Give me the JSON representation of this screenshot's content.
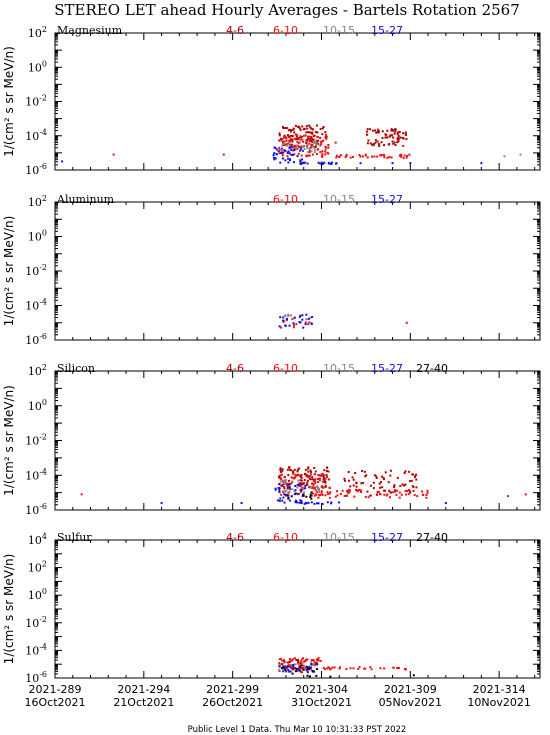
{
  "title": "STEREO LET ahead Hourly Averages - Bartels Rotation 2567",
  "ylabel": "1/(cm² s sr MeV/n)",
  "footer": "Public Level 1 Data. Thu Mar 10 10:31:33 PST 2022",
  "x_ticks": [
    {
      "line1": "2021-289",
      "line2": "16Oct2021"
    },
    {
      "line1": "2021-294",
      "line2": "21Oct2021"
    },
    {
      "line1": "2021-299",
      "line2": "26Oct2021"
    },
    {
      "line1": "2021-304",
      "line2": "31Oct2021"
    },
    {
      "line1": "2021-309",
      "line2": "05Nov2021"
    },
    {
      "line1": "2021-314",
      "line2": "10Nov2021"
    }
  ],
  "colors": {
    "4-6": "#b00000",
    "6-10": "#ee1111",
    "10-15": "#888888",
    "15-27": "#1111dd",
    "27-40": "#000000"
  },
  "chart_data": [
    {
      "type": "scatter",
      "panel": "Magnesium",
      "y_scale": "log",
      "ylim_exp": [
        -6,
        2
      ],
      "legend": [
        "4-6",
        "6-10",
        "10-15",
        "15-27"
      ],
      "x_range": [
        "2021-289",
        "2021-316"
      ],
      "series": [
        {
          "name": "4-6",
          "clusters": [
            {
              "x0": 301.6,
              "x1": 304.3,
              "y0": -4.7,
              "y1": -3.4,
              "n": 110
            },
            {
              "x0": 306.5,
              "x1": 308.8,
              "y0": -4.6,
              "y1": -3.6,
              "n": 70
            }
          ]
        },
        {
          "name": "6-10",
          "clusters": [
            {
              "x0": 301.6,
              "x1": 304.5,
              "y0": -5.2,
              "y1": -3.9,
              "n": 90
            },
            {
              "x0": 304.0,
              "x1": 309.0,
              "y0": -5.3,
              "y1": -5.1,
              "n": 40
            }
          ],
          "points": [
            [
              292.3,
              -5.1
            ],
            [
              298.5,
              -5.1
            ],
            [
              304.8,
              -4.4
            ],
            [
              308.6,
              -4.6
            ]
          ]
        },
        {
          "name": "10-15",
          "clusters": [
            {
              "x0": 301.6,
              "x1": 303.8,
              "y0": -5.0,
              "y1": -4.2,
              "n": 30
            }
          ],
          "points": [
            [
              314.3,
              -5.2
            ],
            [
              315.2,
              -5.1
            ]
          ]
        },
        {
          "name": "15-27",
          "clusters": [
            {
              "x0": 301.3,
              "x1": 303.0,
              "y0": -5.6,
              "y1": -4.6,
              "n": 40
            },
            {
              "x0": 302.8,
              "x1": 305.2,
              "y0": -5.65,
              "y1": -5.55,
              "n": 20
            }
          ],
          "points": [
            [
              289.4,
              -5.5
            ],
            [
              306.2,
              -5.6
            ],
            [
              308.0,
              -5.6
            ],
            [
              309.0,
              -5.6
            ],
            [
              313.0,
              -5.6
            ]
          ]
        }
      ]
    },
    {
      "type": "scatter",
      "panel": "Aluminum",
      "y_scale": "log",
      "ylim_exp": [
        -6,
        2
      ],
      "legend": [
        "6-10",
        "10-15",
        "15-27"
      ],
      "x_range": [
        "2021-289",
        "2021-316"
      ],
      "series": [
        {
          "name": "6-10",
          "clusters": [
            {
              "x0": 301.6,
              "x1": 303.4,
              "y0": -5.3,
              "y1": -4.5,
              "n": 12
            }
          ],
          "points": [
            [
              308.8,
              -5.0
            ]
          ]
        },
        {
          "name": "10-15",
          "clusters": [
            {
              "x0": 301.6,
              "x1": 303.4,
              "y0": -4.9,
              "y1": -4.4,
              "n": 8
            }
          ]
        },
        {
          "name": "15-27",
          "clusters": [
            {
              "x0": 301.6,
              "x1": 303.6,
              "y0": -5.3,
              "y1": -4.5,
              "n": 22
            }
          ]
        }
      ]
    },
    {
      "type": "scatter",
      "panel": "Silicon",
      "y_scale": "log",
      "ylim_exp": [
        -6,
        2
      ],
      "legend": [
        "4-6",
        "6-10",
        "10-15",
        "15-27",
        "27-40"
      ],
      "x_range": [
        "2021-289",
        "2021-316"
      ],
      "series": [
        {
          "name": "4-6",
          "clusters": [
            {
              "x0": 301.6,
              "x1": 304.4,
              "y0": -4.8,
              "y1": -3.5,
              "n": 100
            },
            {
              "x0": 305.2,
              "x1": 309.5,
              "y0": -5.0,
              "y1": -3.7,
              "n": 70
            }
          ]
        },
        {
          "name": "6-10",
          "clusters": [
            {
              "x0": 301.6,
              "x1": 304.5,
              "y0": -5.2,
              "y1": -3.9,
              "n": 90
            },
            {
              "x0": 303.8,
              "x1": 310.0,
              "y0": -5.3,
              "y1": -4.8,
              "n": 60
            }
          ],
          "points": [
            [
              290.5,
              -5.1
            ],
            [
              314.5,
              -5.2
            ],
            [
              315.5,
              -5.1
            ]
          ]
        },
        {
          "name": "10-15",
          "clusters": [
            {
              "x0": 301.6,
              "x1": 304.0,
              "y0": -5.0,
              "y1": -4.2,
              "n": 25
            }
          ]
        },
        {
          "name": "15-27",
          "clusters": [
            {
              "x0": 301.3,
              "x1": 303.2,
              "y0": -5.6,
              "y1": -4.5,
              "n": 40
            },
            {
              "x0": 302.8,
              "x1": 305.2,
              "y0": -5.65,
              "y1": -5.55,
              "n": 15
            }
          ],
          "points": [
            [
              295.0,
              -5.6
            ],
            [
              299.5,
              -5.6
            ],
            [
              311.0,
              -5.6
            ]
          ]
        },
        {
          "name": "27-40",
          "clusters": [
            {
              "x0": 301.6,
              "x1": 303.5,
              "y0": -5.4,
              "y1": -4.9,
              "n": 10
            }
          ]
        }
      ]
    },
    {
      "type": "scatter",
      "panel": "Sulfur",
      "y_scale": "log",
      "ylim_exp": [
        -6,
        4
      ],
      "legend": [
        "4-6",
        "6-10",
        "10-15",
        "15-27",
        "27-40"
      ],
      "x_range": [
        "2021-289",
        "2021-316"
      ],
      "series": [
        {
          "name": "4-6",
          "clusters": [
            {
              "x0": 301.6,
              "x1": 303.8,
              "y0": -5.4,
              "y1": -4.6,
              "n": 40
            }
          ]
        },
        {
          "name": "6-10",
          "clusters": [
            {
              "x0": 301.6,
              "x1": 304.0,
              "y0": -5.6,
              "y1": -4.5,
              "n": 50
            },
            {
              "x0": 304.0,
              "x1": 308.8,
              "y0": -5.4,
              "y1": -5.2,
              "n": 30
            }
          ]
        },
        {
          "name": "10-15",
          "clusters": [
            {
              "x0": 301.6,
              "x1": 303.8,
              "y0": -5.5,
              "y1": -4.8,
              "n": 15
            }
          ]
        },
        {
          "name": "15-27",
          "clusters": [
            {
              "x0": 301.6,
              "x1": 303.8,
              "y0": -5.6,
              "y1": -4.9,
              "n": 30
            }
          ]
        },
        {
          "name": "27-40",
          "clusters": [
            {
              "x0": 301.6,
              "x1": 303.8,
              "y0": -5.9,
              "y1": -5.2,
              "n": 15
            }
          ],
          "points": [
            [
              304.5,
              -5.9
            ],
            [
              309.2,
              -5.8
            ]
          ]
        }
      ]
    }
  ]
}
